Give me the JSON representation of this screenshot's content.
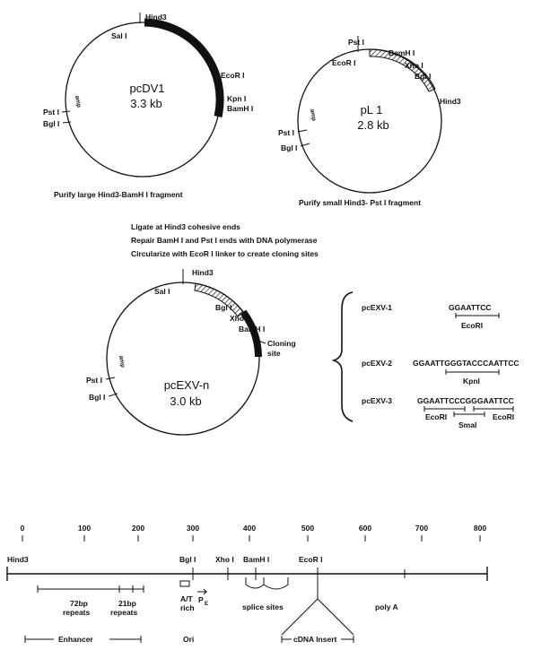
{
  "plasmid1": {
    "name": "pcDV1",
    "size": "3.3 kb",
    "sites": [
      "Hind3",
      "Sal I",
      "EcoR I",
      "Kpn I",
      "BamH I",
      "Pst I",
      "Bgl I"
    ],
    "amp": "amp",
    "caption": "Purify large Hind3-BamH I fragment"
  },
  "plasmid2": {
    "name": "pL 1",
    "size": "2.8 kb",
    "sites": [
      "Pst I",
      "EcoR I",
      "BamH I",
      "Xho I",
      "Bgl I",
      "Hind3",
      "Pst I",
      "Bgl I"
    ],
    "amp": "amp",
    "caption": "Purify small Hind3- Pst I  fragment"
  },
  "steps": [
    "Ligate at Hind3 cohesive ends",
    "Repair BamH I and Pst I  ends with DNA polymerase",
    "Circularize with EcoR I linker to create cloning sites"
  ],
  "plasmid3": {
    "name": "pcEXV-n",
    "size": "3.0 kb",
    "sites": [
      "Hind3",
      "Sal I",
      "Bgl I",
      "Xho I",
      "BamH I",
      "Pst I",
      "Bgl I"
    ],
    "cloning": [
      "Cloning",
      "site"
    ],
    "amp": "amp"
  },
  "variants": [
    {
      "name": "pcEXV-1",
      "seq": "GGAATTCC",
      "enzymes": [
        "EcoRI"
      ]
    },
    {
      "name": "pcEXV-2",
      "seq": "GGAATTGGGTACCCAATTCC",
      "enzymes": [
        "KpnI"
      ]
    },
    {
      "name": "pcEXV-3",
      "seq": "GGAATTCCCGGGAATTCC",
      "enzymes": [
        "EcoRI",
        "SmaI",
        "EcoRI"
      ]
    }
  ],
  "map": {
    "ticks": [
      0,
      100,
      200,
      300,
      400,
      500,
      600,
      700,
      800
    ],
    "sites": [
      "Hind3",
      "Bgl I",
      "Xho I",
      "BamH I",
      "EcoR I"
    ],
    "features": {
      "repeats72": [
        "72bp",
        "repeats"
      ],
      "repeats21": [
        "21bp",
        "repeats"
      ],
      "at_rich": [
        "A/T",
        "rich"
      ],
      "promoter": "P",
      "promoter_sub": "E",
      "splice": "splice sites",
      "polya": "poly A"
    },
    "regions": {
      "enhancer": "Enhancer",
      "ori": "Ori",
      "cdna": "cDNA Insert"
    }
  }
}
